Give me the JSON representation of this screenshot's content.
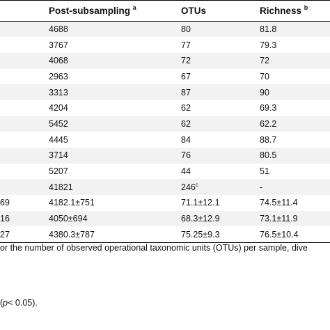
{
  "table": {
    "headers": [
      {
        "text": "",
        "sup": ""
      },
      {
        "text": "Post-subsampling",
        "sup": "a"
      },
      {
        "text": "OTUs",
        "sup": ""
      },
      {
        "text": "Richness",
        "sup": "b"
      }
    ],
    "rows": [
      {
        "c0": "",
        "c1": "4688",
        "c2": "80",
        "c2sup": "",
        "c3": "81.8"
      },
      {
        "c0": "",
        "c1": "3767",
        "c2": "77",
        "c2sup": "",
        "c3": "79.3"
      },
      {
        "c0": "",
        "c1": "4068",
        "c2": "72",
        "c2sup": "",
        "c3": "72"
      },
      {
        "c0": "",
        "c1": "2963",
        "c2": "67",
        "c2sup": "",
        "c3": "70"
      },
      {
        "c0": "",
        "c1": "3313",
        "c2": "87",
        "c2sup": "",
        "c3": "90"
      },
      {
        "c0": "",
        "c1": "4204",
        "c2": "62",
        "c2sup": "",
        "c3": "69.3"
      },
      {
        "c0": "",
        "c1": "5452",
        "c2": "62",
        "c2sup": "",
        "c3": "62.2"
      },
      {
        "c0": "",
        "c1": "4445",
        "c2": "84",
        "c2sup": "",
        "c3": "88.7"
      },
      {
        "c0": "",
        "c1": "3714",
        "c2": "76",
        "c2sup": "",
        "c3": "80.5"
      },
      {
        "c0": "",
        "c1": "5207",
        "c2": "44",
        "c2sup": "",
        "c3": "51"
      },
      {
        "c0": "",
        "c1": "41821",
        "c2": "246",
        "c2sup": "c",
        "c3": "-"
      },
      {
        "c0": "69",
        "c1": "4182.1±751",
        "c2": "71.1±12.1",
        "c2sup": "",
        "c3": "74.5±11.4"
      },
      {
        "c0": "16",
        "c1": "4050±694",
        "c2": "68.3±12.9",
        "c2sup": "",
        "c3": "73.1±11.9"
      },
      {
        "c0": "27",
        "c1": "4380.3±787",
        "c2": "75.25±9.3",
        "c2sup": "",
        "c3": "76.5±10.4"
      }
    ]
  },
  "footnotes": {
    "line1": "or the number of observed operational taxonomic units (OTUs) per sample, dive",
    "line2_italic": "p",
    "line2_rest": "< 0.05)."
  }
}
